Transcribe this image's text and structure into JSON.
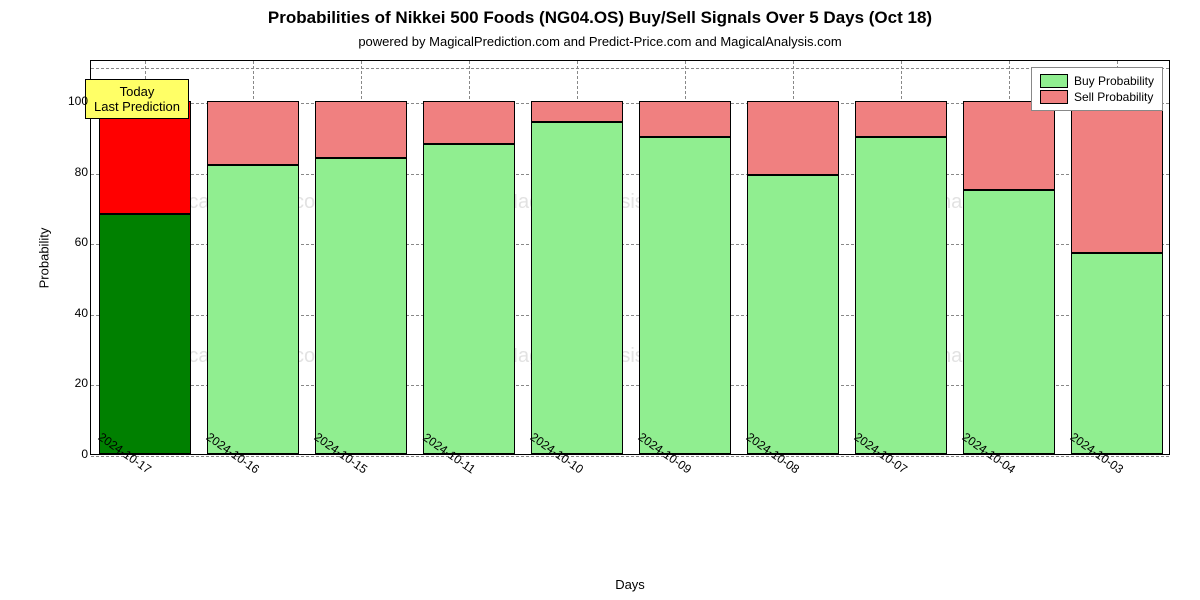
{
  "chart": {
    "type": "stacked-bar",
    "title": "Probabilities of Nikkei 500 Foods (NG04.OS) Buy/Sell Signals Over 5 Days (Oct 18)",
    "title_fontsize": 17,
    "subtitle": "powered by MagicalPrediction.com and Predict-Price.com and MagicalAnalysis.com",
    "subtitle_fontsize": 13,
    "xlabel": "Days",
    "ylabel": "Probability",
    "axis_label_fontsize": 13,
    "tick_fontsize": 12,
    "background_color": "#ffffff",
    "grid_color": "#888888",
    "grid_dash": true,
    "ylim": [
      0,
      112
    ],
    "yticks": [
      0,
      20,
      40,
      60,
      80,
      100
    ],
    "bar_total": 100,
    "bar_width_ratio": 0.86,
    "bar_border_color": "#000000",
    "first_bar_colors": {
      "buy": "#008000",
      "sell": "#ff0000"
    },
    "rest_bar_colors": {
      "buy": "#90ee90",
      "sell": "#f08080"
    },
    "callout": {
      "lines": [
        "Today",
        "Last Prediction"
      ],
      "background_color": "#ffff66",
      "border_color": "#000000",
      "fontsize": 13,
      "x_index": 0,
      "y_value": 107
    },
    "legend": {
      "position": "top-right",
      "border_color": "#888888",
      "fontsize": 12,
      "items": [
        {
          "label": "Buy Probability",
          "color": "#90ee90"
        },
        {
          "label": "Sell Probability",
          "color": "#f08080"
        }
      ]
    },
    "watermark": {
      "text": "MagicalAnalysis.com",
      "color": "#bfbfbf",
      "fontsize": 20,
      "count": 6
    },
    "categories": [
      "2024-10-17",
      "2024-10-16",
      "2024-10-15",
      "2024-10-11",
      "2024-10-10",
      "2024-10-09",
      "2024-10-08",
      "2024-10-07",
      "2024-10-04",
      "2024-10-03"
    ],
    "buy_values": [
      68,
      82,
      84,
      88,
      94,
      90,
      79,
      90,
      75,
      57
    ],
    "sell_values": [
      32,
      18,
      16,
      12,
      6,
      10,
      21,
      10,
      25,
      43
    ]
  }
}
